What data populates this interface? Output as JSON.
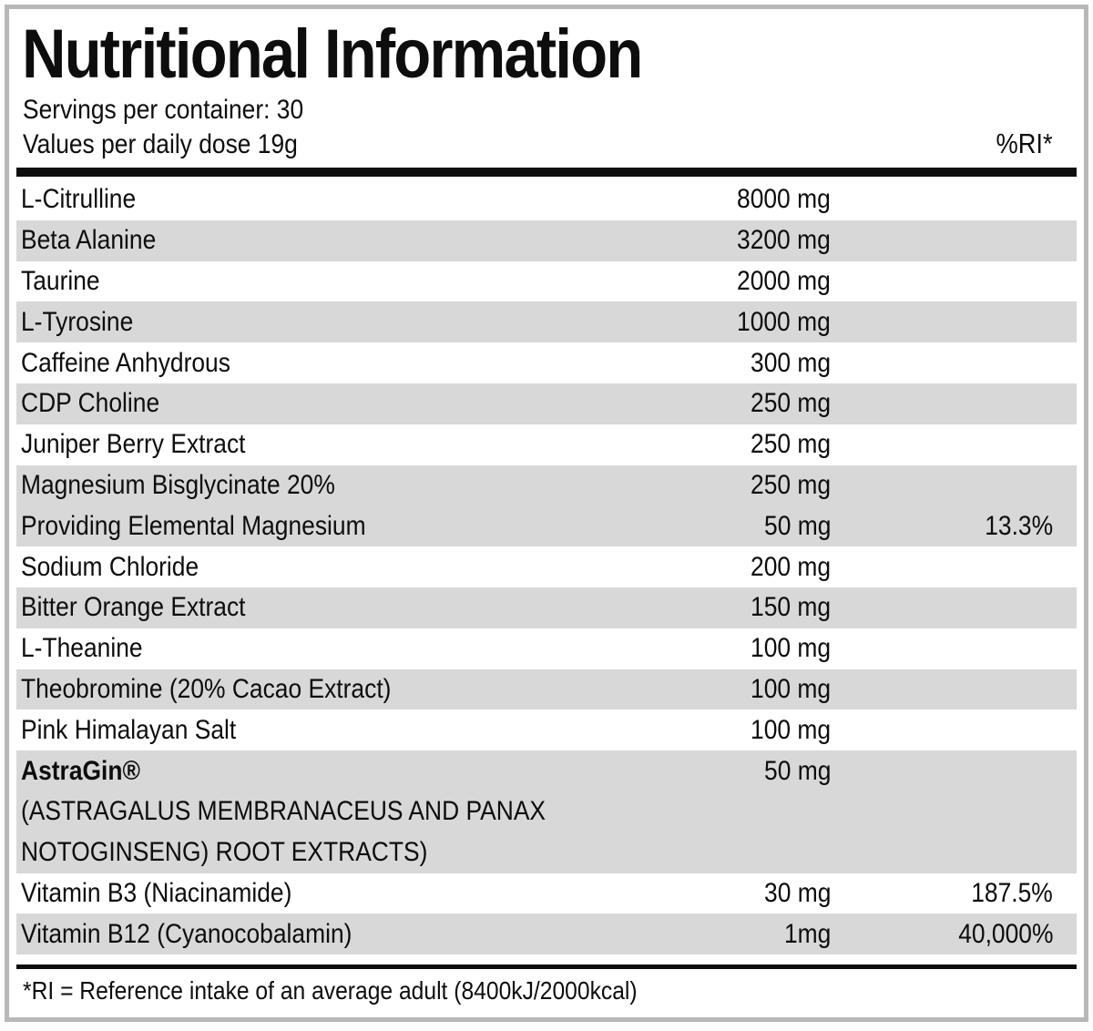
{
  "label": {
    "title": "Nutritional Information",
    "servings_line": "Servings per container: 30",
    "dose_line": "Values per daily dose 19g",
    "ri_header": "%RI*",
    "footnote": "*RI = Reference intake of an average adult (8400kJ/2000kcal)"
  },
  "colors": {
    "shaded_row": "#d8d8d8",
    "frame_border": "#b7b9b6",
    "ink": "#0d0d0d"
  },
  "table": {
    "rows": [
      {
        "name": "L-Citrulline",
        "amount": "8000 mg",
        "ri": ""
      },
      {
        "name": "Beta Alanine",
        "amount": "3200 mg",
        "ri": ""
      },
      {
        "name": "Taurine",
        "amount": "2000 mg",
        "ri": ""
      },
      {
        "name": "L-Tyrosine",
        "amount": "1000 mg",
        "ri": ""
      },
      {
        "name": "Caffeine Anhydrous",
        "amount": "300 mg",
        "ri": ""
      },
      {
        "name": "CDP Choline",
        "amount": "250 mg",
        "ri": ""
      },
      {
        "name": "Juniper Berry Extract",
        "amount": "250 mg",
        "ri": ""
      },
      {
        "name": "Magnesium Bisglycinate 20%",
        "amount": "250 mg",
        "ri": ""
      },
      {
        "name": "Providing Elemental Magnesium",
        "amount": "50 mg",
        "ri": "13.3%"
      },
      {
        "name": "Sodium Chloride",
        "amount": "200 mg",
        "ri": ""
      },
      {
        "name": "Bitter Orange Extract",
        "amount": "150 mg",
        "ri": ""
      },
      {
        "name": "L-Theanine",
        "amount": "100 mg",
        "ri": ""
      },
      {
        "name": "Theobromine (20% Cacao Extract)",
        "amount": "100 mg",
        "ri": ""
      },
      {
        "name": "Pink Himalayan Salt",
        "amount": "100 mg",
        "ri": ""
      },
      {
        "name": "AstraGin®",
        "amount": "50 mg",
        "ri": "",
        "note_line1": "(ASTRAGALUS MEMBRANACEUS AND PANAX",
        "note_line2": "NOTOGINSENG) ROOT EXTRACTS)"
      },
      {
        "name": "Vitamin B3 (Niacinamide)",
        "amount": "30 mg",
        "ri": "187.5%"
      },
      {
        "name": "Vitamin B12 (Cyanocobalamin)",
        "amount": "1mg",
        "ri": "40,000%"
      }
    ]
  }
}
